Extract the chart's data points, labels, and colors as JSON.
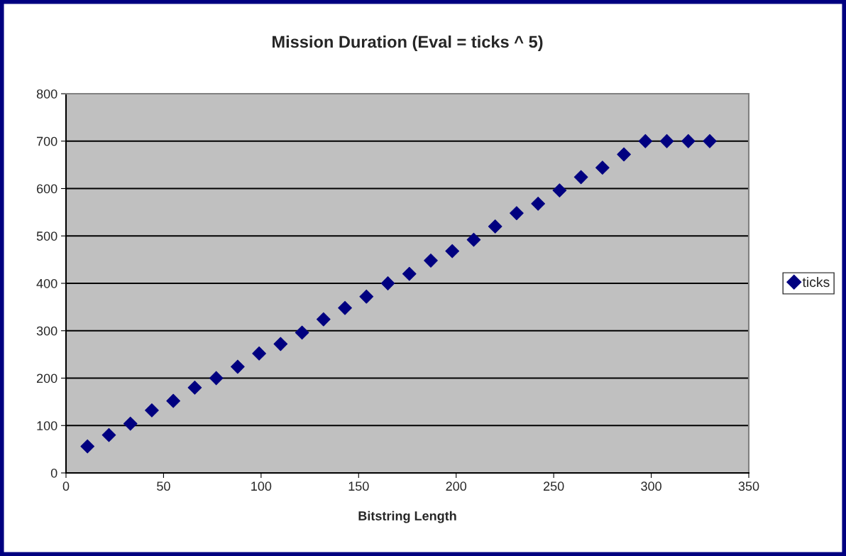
{
  "chart_data": {
    "type": "scatter",
    "title": "Mission Duration (Eval = ticks ^ 5)",
    "xlabel": "Bitstring Length",
    "x": [
      11,
      22,
      33,
      44,
      55,
      66,
      77,
      88,
      99,
      110,
      121,
      132,
      143,
      154,
      165,
      176,
      187,
      198,
      209,
      220,
      231,
      242,
      253,
      264,
      275,
      286,
      297,
      308,
      319,
      330
    ],
    "series": [
      {
        "name": "ticks",
        "color": "#000080",
        "values": [
          56,
          80,
          104,
          132,
          152,
          180,
          200,
          224,
          252,
          272,
          296,
          324,
          348,
          372,
          400,
          420,
          448,
          468,
          492,
          520,
          548,
          568,
          596,
          624,
          644,
          672,
          700,
          700,
          700,
          700
        ]
      }
    ],
    "xlim": [
      0,
      350
    ],
    "xticks": [
      0,
      50,
      100,
      150,
      200,
      250,
      300,
      350
    ],
    "ylim": [
      0,
      800
    ],
    "yticks": [
      0,
      100,
      200,
      300,
      400,
      500,
      600,
      700,
      800
    ],
    "grid": "y",
    "legend": "right",
    "marker": "diamond"
  }
}
